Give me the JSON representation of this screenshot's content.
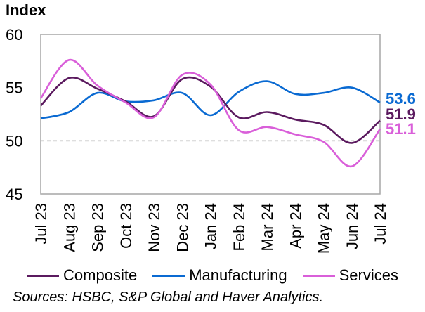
{
  "chart_data": {
    "type": "line",
    "title": "",
    "ylabel": "Index",
    "xlabel": "",
    "ylim": [
      45,
      60
    ],
    "yticks": [
      45,
      50,
      55,
      60
    ],
    "reference_line": {
      "y": 50,
      "style": "dashed",
      "color": "#a6a6a6"
    },
    "grid": false,
    "categories": [
      "Jul 23",
      "Aug 23",
      "Sep 23",
      "Oct 23",
      "Nov 23",
      "Dec 23",
      "Jan 24",
      "Feb 24",
      "Mar 24",
      "Apr 24",
      "May 24",
      "Jun 24",
      "Jul 24"
    ],
    "series": [
      {
        "name": "Composite",
        "color": "#5b1a5f",
        "end_label": "51.9",
        "values": [
          53.3,
          55.9,
          54.9,
          53.7,
          52.3,
          55.8,
          55.1,
          52.2,
          52.7,
          52.0,
          51.5,
          49.8,
          51.9
        ]
      },
      {
        "name": "Manufacturing",
        "color": "#0a6ad2",
        "end_label": "53.6",
        "values": [
          52.1,
          52.7,
          54.5,
          53.7,
          53.8,
          54.5,
          52.4,
          54.6,
          55.6,
          54.4,
          54.5,
          55.0,
          53.6
        ]
      },
      {
        "name": "Services",
        "color": "#d95fd9",
        "end_label": "51.1",
        "values": [
          54.0,
          57.6,
          55.2,
          53.6,
          52.2,
          56.2,
          55.3,
          51.0,
          51.3,
          50.6,
          49.9,
          47.6,
          51.1
        ]
      }
    ],
    "legend_position": "bottom"
  },
  "source_text": "Sources: HSBC, S&P Global and Haver Analytics."
}
